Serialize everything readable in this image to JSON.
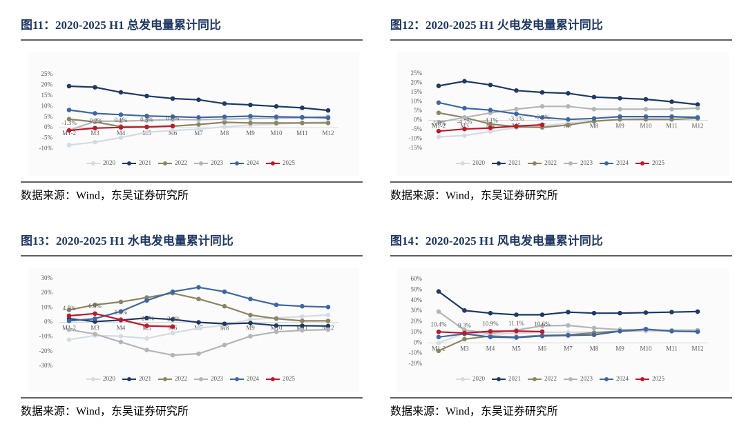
{
  "chart_data": [
    {
      "type": "line",
      "title": "图11：2020-2025 H1 总发电量累计同比",
      "source": "数据来源：Wind，东吴证券研究所",
      "categories": [
        "M1-2",
        "M3",
        "M4",
        "M5",
        "M6",
        "M7",
        "M8",
        "M9",
        "M10",
        "M11",
        "M12"
      ],
      "ylim": [
        -10,
        25
      ],
      "yticks": [
        {
          "value": -10,
          "label": "-10%"
        },
        {
          "value": -5,
          "label": "-5%"
        },
        {
          "value": 0,
          "label": "0%"
        },
        {
          "value": 5,
          "label": "5%"
        },
        {
          "value": 10,
          "label": "10%"
        },
        {
          "value": 15,
          "label": "15%"
        },
        {
          "value": 20,
          "label": "20%"
        },
        {
          "value": 25,
          "label": "25%"
        }
      ],
      "series": [
        {
          "name": "2020",
          "color": "#d6dbe3",
          "values": [
            -8.2,
            -6.8,
            -4.7,
            -2.2,
            -1.3,
            -0.7,
            0.4,
            1.1,
            1.7,
            2.3,
            2.7
          ]
        },
        {
          "name": "2021",
          "color": "#1f3864",
          "values": [
            19.5,
            19.0,
            16.6,
            14.9,
            13.7,
            13.1,
            11.3,
            10.7,
            10.0,
            9.3,
            8.1
          ]
        },
        {
          "name": "2022",
          "color": "#8b8660",
          "values": [
            4.0,
            2.7,
            0.5,
            0.4,
            0.7,
            1.5,
            2.5,
            2.2,
            2.2,
            2.2,
            2.2
          ]
        },
        {
          "name": "2023",
          "color": "#b3b5b8",
          "values": [
            -1.3,
            3.0,
            3.1,
            3.4,
            3.8,
            3.7,
            4.0,
            4.3,
            4.5,
            4.6,
            5.2
          ]
        },
        {
          "name": "2024",
          "color": "#3d66a6",
          "values": [
            8.3,
            6.7,
            6.1,
            5.5,
            5.2,
            4.8,
            5.1,
            5.4,
            5.1,
            4.9,
            4.6
          ]
        },
        {
          "name": "2025",
          "color": "#c0182a",
          "values": [
            -1.3,
            -0.2,
            0.1,
            0.3,
            0.8,
            null,
            null,
            null,
            null,
            null,
            null
          ],
          "value_labels": [
            "-1.3%",
            "-0.2%",
            "0.1%",
            "0.3%",
            "0.8%",
            null,
            null,
            null,
            null,
            null,
            null
          ]
        }
      ]
    },
    {
      "type": "line",
      "title": "图12：2020-2025 H1 火电发电量累计同比",
      "source": "数据来源：Wind，东吴证券研究所",
      "categories": [
        "M1-2",
        "M3",
        "M4",
        "M5",
        "M6",
        "M7",
        "M8",
        "M9",
        "M10",
        "M11",
        "M12"
      ],
      "ylim": [
        -15,
        25
      ],
      "yticks": [
        {
          "value": -15,
          "label": "-15%"
        },
        {
          "value": -10,
          "label": "-10%"
        },
        {
          "value": -5,
          "label": "-5%"
        },
        {
          "value": 0,
          "label": "0%"
        },
        {
          "value": 5,
          "label": "5%"
        },
        {
          "value": 10,
          "label": "10%"
        },
        {
          "value": 15,
          "label": "15%"
        },
        {
          "value": 20,
          "label": "20%"
        },
        {
          "value": 25,
          "label": "25%"
        }
      ],
      "series": [
        {
          "name": "2020",
          "color": "#d6dbe3",
          "values": [
            -8.9,
            -8.2,
            -6.0,
            -4.0,
            -3.0,
            -1.5,
            -0.5,
            0.5,
            1.0,
            1.5,
            2.0
          ]
        },
        {
          "name": "2021",
          "color": "#1f3864",
          "values": [
            18.5,
            21.0,
            19.0,
            16.0,
            15.0,
            14.5,
            12.5,
            11.9,
            11.3,
            10.0,
            8.5
          ]
        },
        {
          "name": "2022",
          "color": "#8b8660",
          "values": [
            4.0,
            1.5,
            -2.0,
            -3.5,
            -3.8,
            -2.5,
            -0.5,
            0.5,
            0.5,
            0.5,
            1.0
          ]
        },
        {
          "name": "2023",
          "color": "#b3b5b8",
          "values": [
            -1.0,
            1.5,
            4.0,
            6.0,
            7.5,
            7.5,
            6.0,
            6.0,
            6.0,
            6.0,
            6.5
          ]
        },
        {
          "name": "2024",
          "color": "#3d66a6",
          "values": [
            9.5,
            6.5,
            5.5,
            3.5,
            1.5,
            0.5,
            1.0,
            2.0,
            2.0,
            2.0,
            1.5
          ]
        },
        {
          "name": "2025",
          "color": "#c0182a",
          "values": [
            -5.8,
            -4.7,
            -4.1,
            -3.1,
            -2.4,
            null,
            null,
            null,
            null,
            null,
            null
          ],
          "value_labels": [
            "-5.8%",
            "-4.7%",
            "-4.1%",
            "-3.1%",
            "-2.4%",
            null,
            null,
            null,
            null,
            null,
            null
          ]
        }
      ]
    },
    {
      "type": "line",
      "title": "图13：2020-2025 H1 水电发电量累计同比",
      "source": "数据来源：Wind，东吴证券研究所",
      "categories": [
        "M1-2",
        "M3",
        "M4",
        "M5",
        "M6",
        "M7",
        "M8",
        "M9",
        "M10",
        "M11",
        "M12"
      ],
      "ylim": [
        -30,
        30
      ],
      "yticks": [
        {
          "value": -30,
          "label": "-30%"
        },
        {
          "value": -20,
          "label": "-20%"
        },
        {
          "value": -10,
          "label": "-10%"
        },
        {
          "value": 0,
          "label": "0%"
        },
        {
          "value": 10,
          "label": "10%"
        },
        {
          "value": 20,
          "label": "20%"
        },
        {
          "value": 30,
          "label": "30%"
        }
      ],
      "series": [
        {
          "name": "2020",
          "color": "#d6dbe3",
          "values": [
            -11.9,
            -9.0,
            -9.5,
            -11.0,
            -7.3,
            -4.0,
            -2.0,
            2.0,
            3.0,
            4.0,
            5.0
          ]
        },
        {
          "name": "2021",
          "color": "#1f3864",
          "values": [
            2.5,
            0.5,
            1.5,
            3.0,
            2.0,
            0.0,
            -1.0,
            -0.5,
            -2.2,
            -2.3,
            -2.5
          ]
        },
        {
          "name": "2022",
          "color": "#8b8660",
          "values": [
            8.5,
            12.0,
            14.0,
            17.0,
            20.0,
            16.0,
            11.0,
            5.0,
            2.5,
            1.0,
            1.0
          ]
        },
        {
          "name": "2023",
          "color": "#b3b5b8",
          "values": [
            -5.0,
            -8.0,
            -13.5,
            -19.0,
            -22.5,
            -21.5,
            -15.5,
            -9.5,
            -6.5,
            -5.5,
            -5.0
          ]
        },
        {
          "name": "2024",
          "color": "#3d66a6",
          "values": [
            1.0,
            2.5,
            7.5,
            15.0,
            21.0,
            24.0,
            21.0,
            16.0,
            12.0,
            11.0,
            10.5
          ]
        },
        {
          "name": "2025",
          "color": "#c0182a",
          "values": [
            4.5,
            6.0,
            1.8,
            -2.4,
            -2.9,
            null,
            null,
            null,
            null,
            null,
            null
          ],
          "value_labels": [
            "4.5%",
            "6.0%",
            "1.8%",
            "-2.4%",
            "-2.9%",
            null,
            null,
            null,
            null,
            null,
            null
          ]
        }
      ]
    },
    {
      "type": "line",
      "title": "图14：2020-2025 H1 风电发电量累计同比",
      "source": "数据来源：Wind，东吴证券研究所",
      "categories": [
        "M1-2",
        "M3",
        "M4",
        "M5",
        "M6",
        "M7",
        "M8",
        "M9",
        "M10",
        "M11",
        "M12"
      ],
      "ylim": [
        -20,
        60
      ],
      "yticks": [
        {
          "value": -20,
          "label": "-20%"
        },
        {
          "value": -10,
          "label": "-10%"
        },
        {
          "value": 0,
          "label": "0%"
        },
        {
          "value": 10,
          "label": "10%"
        },
        {
          "value": 20,
          "label": "20%"
        },
        {
          "value": 30,
          "label": "30%"
        },
        {
          "value": 40,
          "label": "40%"
        },
        {
          "value": 50,
          "label": "50%"
        },
        {
          "value": 60,
          "label": "60%"
        }
      ],
      "series": [
        {
          "name": "2020",
          "color": "#d6dbe3",
          "values": [
            0,
            9,
            8,
            9,
            10,
            10,
            10,
            11,
            11,
            11,
            11
          ]
        },
        {
          "name": "2021",
          "color": "#1f3864",
          "values": [
            48.5,
            30.5,
            28,
            26.5,
            26.5,
            29,
            28,
            28,
            28.5,
            29,
            29.5
          ]
        },
        {
          "name": "2022",
          "color": "#8b8660",
          "values": [
            -7.5,
            3.5,
            6.5,
            5.5,
            7,
            7.5,
            9.5,
            11,
            12,
            11.5,
            11.5
          ]
        },
        {
          "name": "2023",
          "color": "#b3b5b8",
          "values": [
            29.5,
            12,
            9,
            12,
            16,
            16.5,
            14,
            12.5,
            12,
            12,
            12
          ]
        },
        {
          "name": "2024",
          "color": "#3d66a6",
          "values": [
            5.5,
            8.5,
            5.5,
            5,
            6.5,
            7,
            7.5,
            11,
            13,
            11,
            10.5
          ]
        },
        {
          "name": "2025",
          "color": "#c0182a",
          "values": [
            10.4,
            9.3,
            10.9,
            11.1,
            10.6,
            null,
            null,
            null,
            null,
            null,
            null
          ],
          "value_labels": [
            "10.4%",
            "9.3%",
            "10.9%",
            "11.1%",
            "10.6%",
            null,
            null,
            null,
            null,
            null,
            null
          ]
        }
      ]
    }
  ]
}
